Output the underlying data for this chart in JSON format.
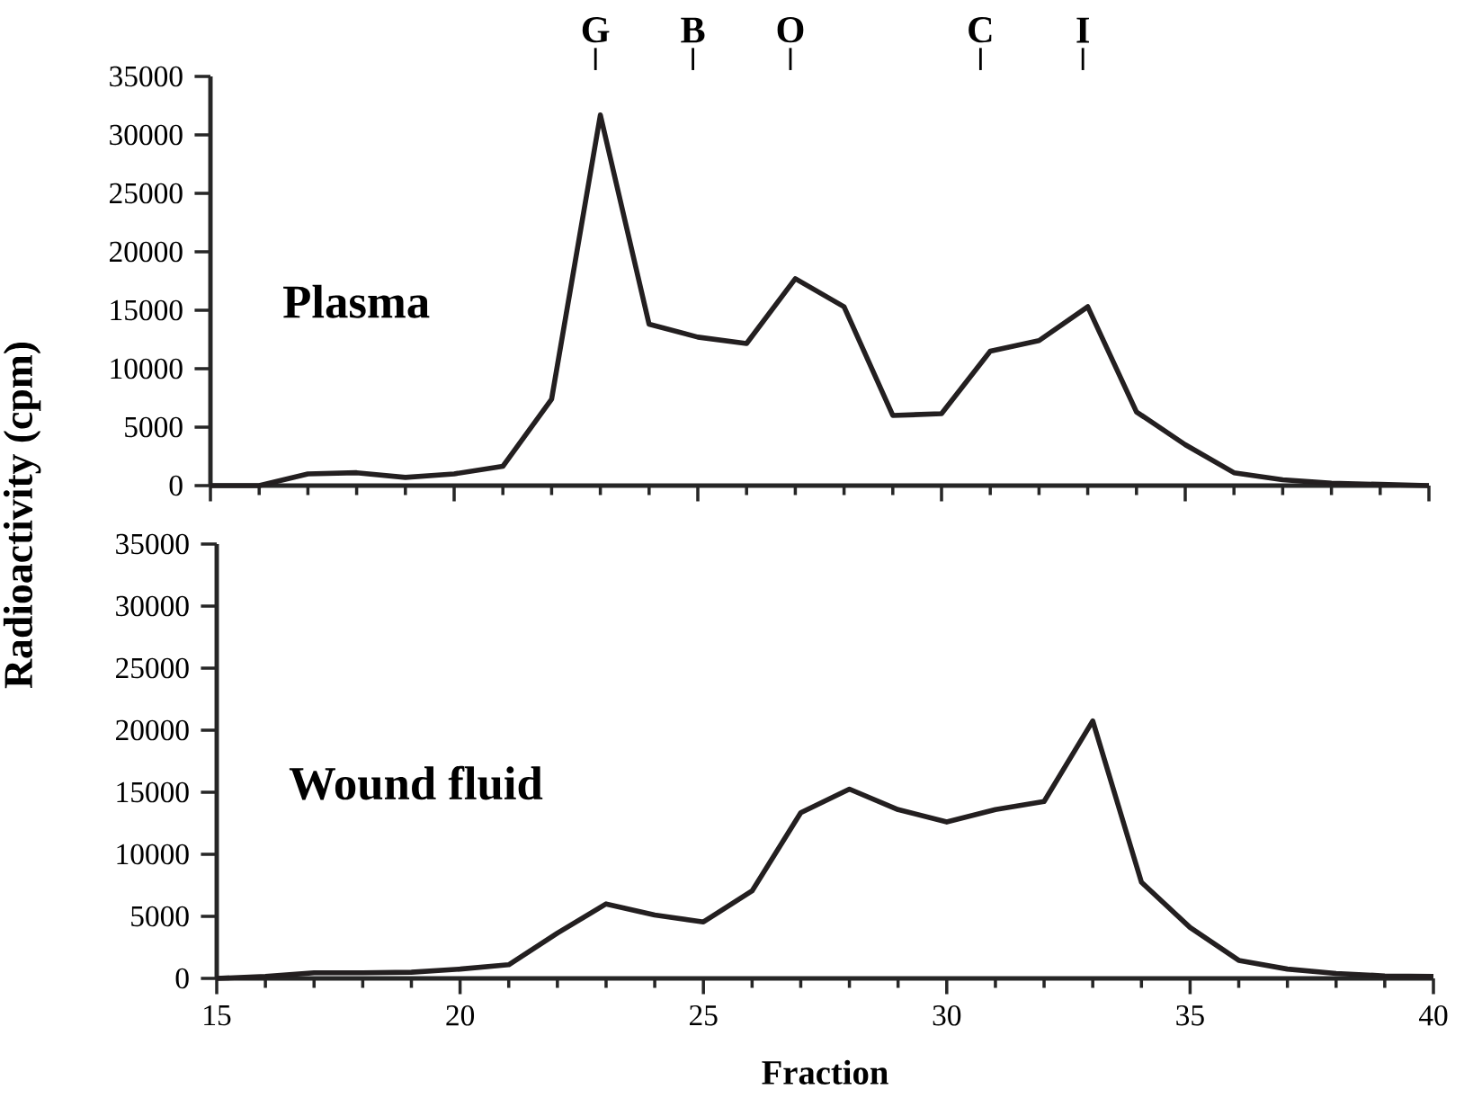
{
  "chart_data": [
    {
      "type": "line",
      "ylabel": "Radioactivity (cpm)",
      "x": [
        15,
        16,
        17,
        18,
        19,
        20,
        21,
        22,
        23,
        24,
        25,
        26,
        27,
        28,
        29,
        30,
        31,
        32,
        33,
        34,
        35,
        36,
        37,
        38,
        39,
        40
      ],
      "series": [
        {
          "color": "#231f20",
          "values": [
            0,
            0,
            1000,
            1100,
            700,
            1000,
            1650,
            7400,
            31700,
            13800,
            12700,
            12150,
            17700,
            15300,
            6000,
            6150,
            11500,
            12400,
            15300,
            6300,
            3500,
            1100,
            500,
            200,
            100,
            0
          ]
        }
      ],
      "xlim": [
        15,
        40
      ],
      "xticks": [
        15,
        20,
        25,
        30,
        35,
        40
      ],
      "ylim": [
        0,
        35000
      ],
      "yticks": [
        0,
        5000,
        10000,
        15000,
        20000,
        25000,
        30000,
        35000
      ],
      "tick_labels": "y",
      "marker": "none",
      "line_style": "solid",
      "grid": false,
      "ref_lines": [
        {
          "axis": "x",
          "value": 22.9,
          "label": "G"
        },
        {
          "axis": "x",
          "value": 24.9,
          "label": "B"
        },
        {
          "axis": "x",
          "value": 26.9,
          "label": "O"
        },
        {
          "axis": "x",
          "value": 30.8,
          "label": "C"
        },
        {
          "axis": "x",
          "value": 32.9,
          "label": "I"
        }
      ],
      "annotations": [
        "Plasma"
      ]
    },
    {
      "type": "line",
      "xlabel": "Fraction",
      "x": [
        15,
        16,
        17,
        18,
        19,
        20,
        21,
        22,
        23,
        24,
        25,
        26,
        27,
        28,
        29,
        30,
        31,
        32,
        33,
        34,
        35,
        36,
        37,
        38,
        39,
        40
      ],
      "series": [
        {
          "color": "#231f20",
          "values": [
            0,
            150,
            450,
            450,
            500,
            750,
            1100,
            3650,
            6000,
            5100,
            4550,
            7050,
            13350,
            15250,
            13600,
            12600,
            13600,
            14250,
            20750,
            7750,
            4100,
            1450,
            750,
            400,
            200,
            150
          ]
        }
      ],
      "xlim": [
        15,
        40
      ],
      "xticks": [
        15,
        20,
        25,
        30,
        35,
        40
      ],
      "ylim": [
        0,
        35000
      ],
      "yticks": [
        0,
        5000,
        10000,
        15000,
        20000,
        25000,
        30000,
        35000
      ],
      "marker": "none",
      "line_style": "solid",
      "grid": false,
      "annotations": [
        "Wound fluid"
      ]
    }
  ]
}
